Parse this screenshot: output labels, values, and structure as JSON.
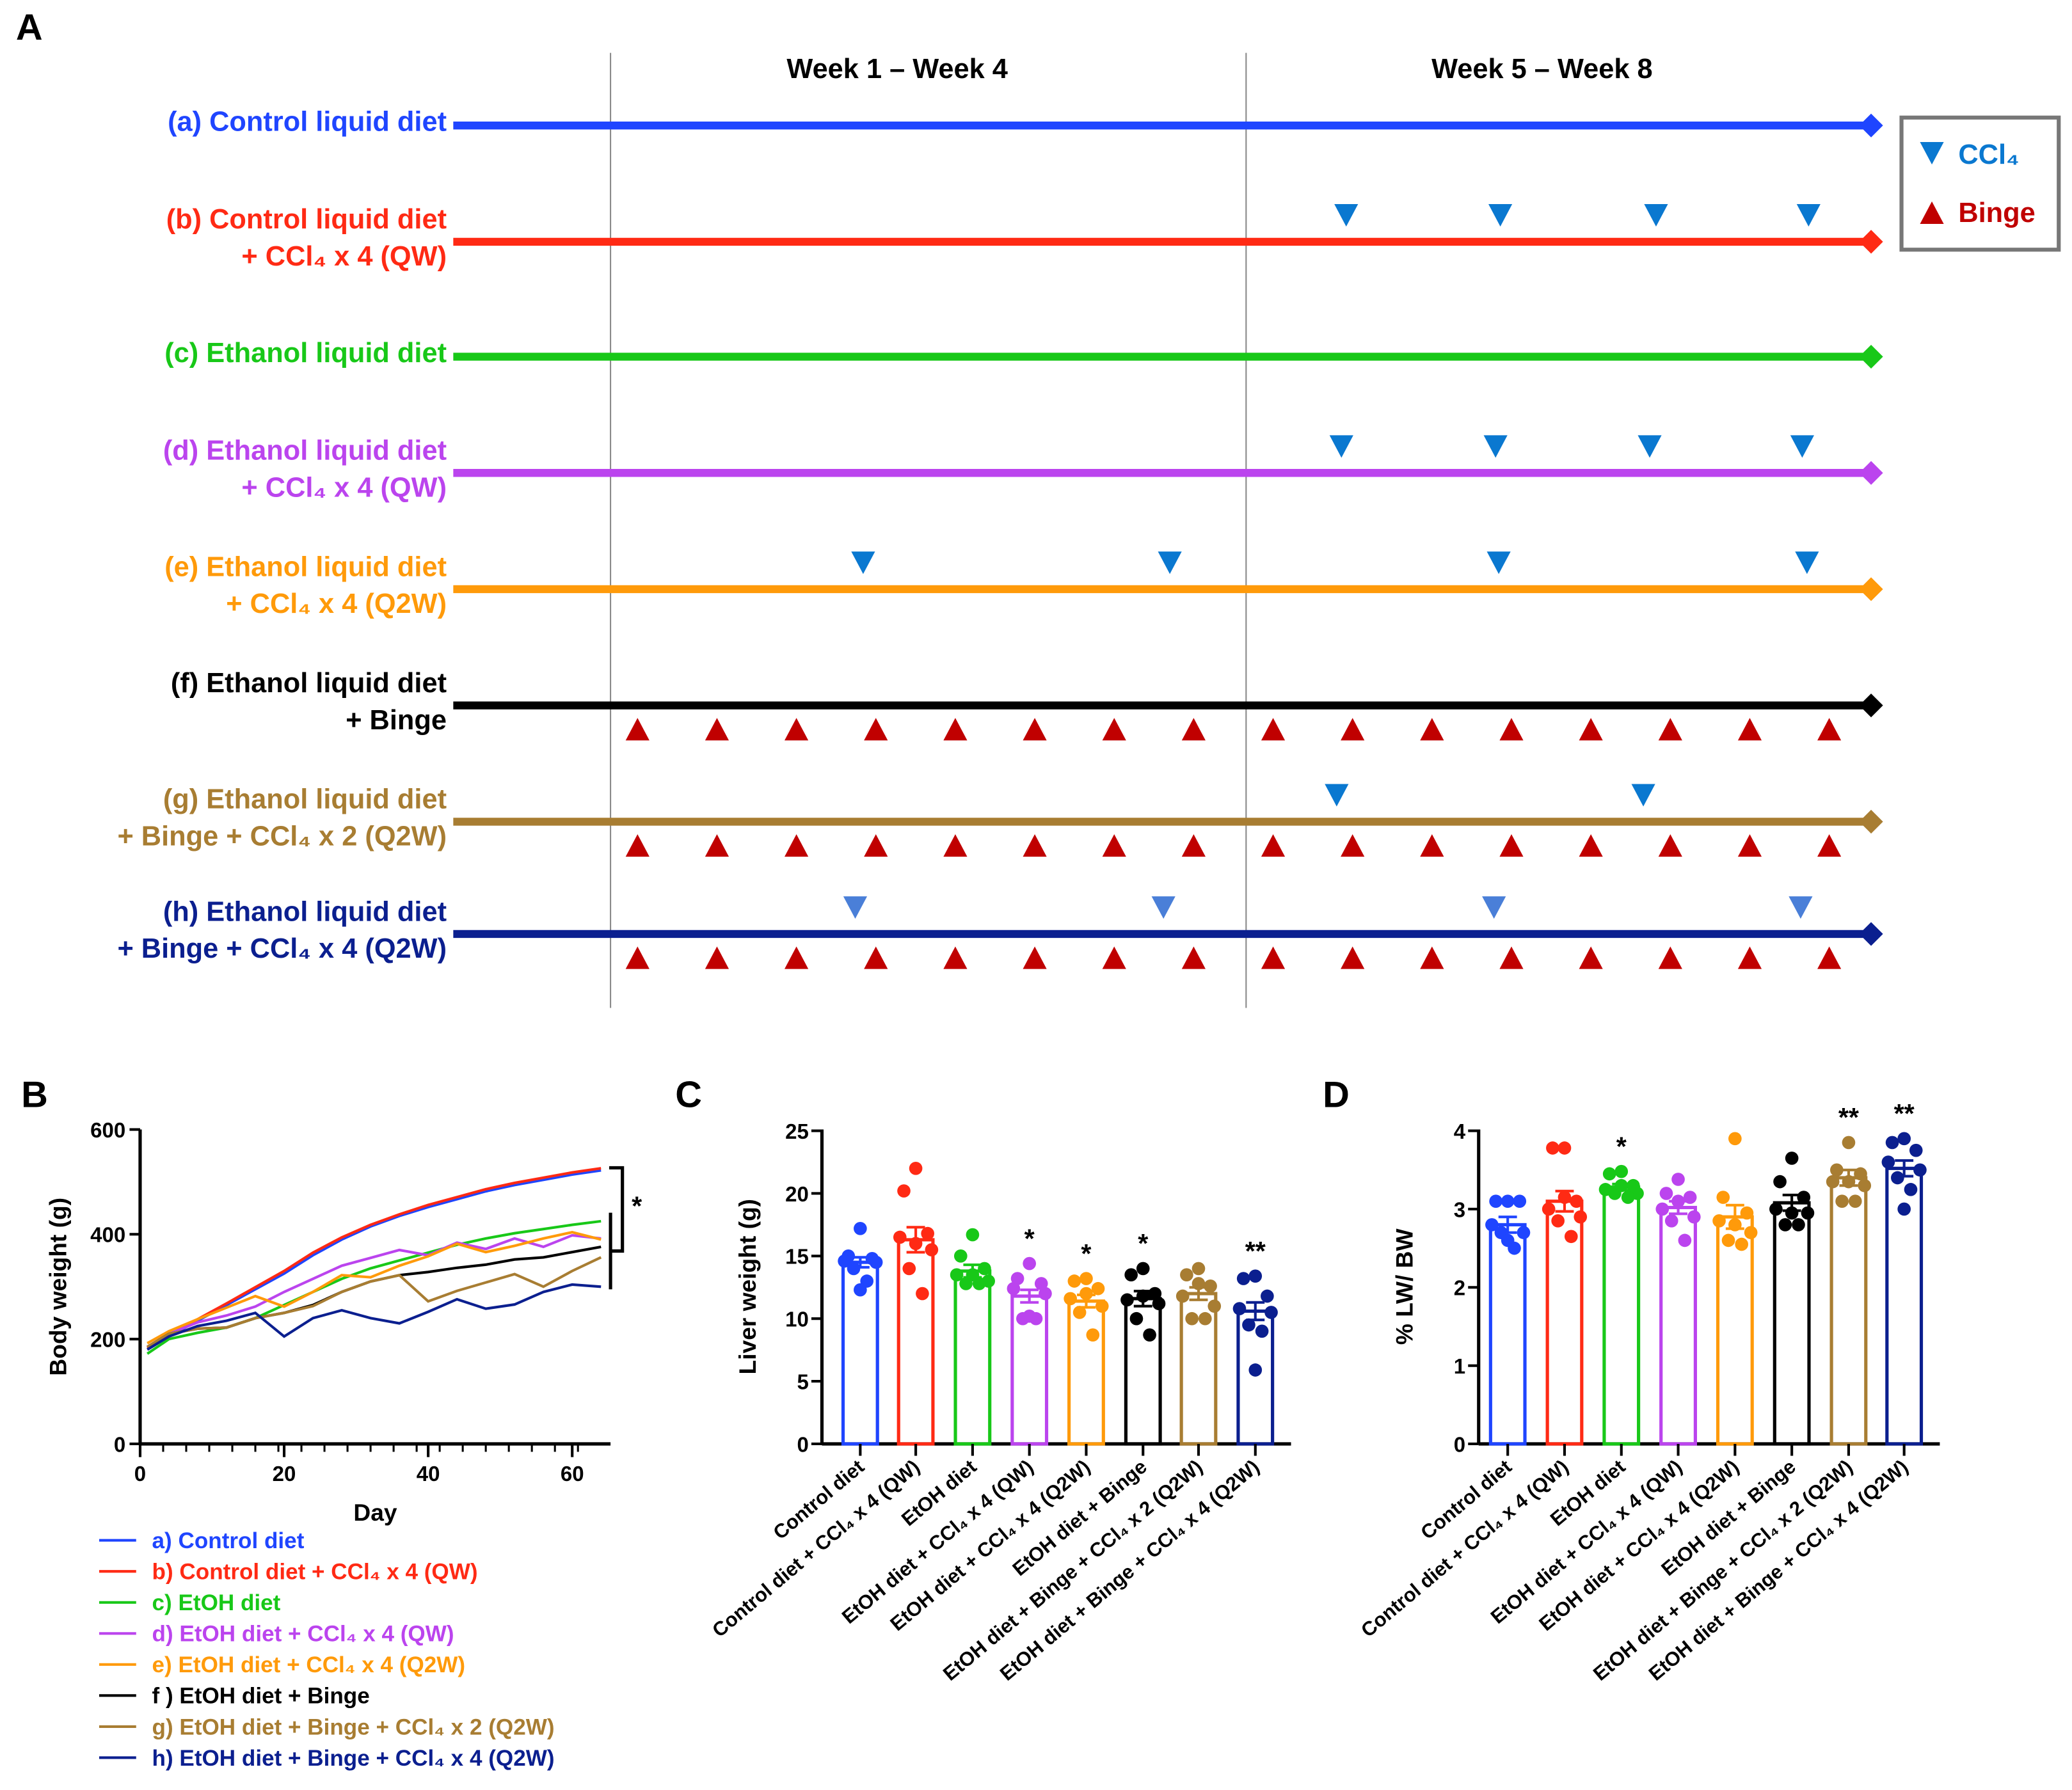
{
  "panel_labels": {
    "a": "A",
    "b": "B",
    "c": "C",
    "d": "D"
  },
  "colors": {
    "a": "#1f45ff",
    "b": "#ff2a14",
    "c": "#18c818",
    "d": "#bb44ee",
    "e": "#ff9a0a",
    "f": "#000000",
    "g": "#a87d32",
    "h": "#0b1f8f",
    "ccl4": "#0a78d0",
    "ccl4_h": "#4a7fd8",
    "binge": "#c00000"
  },
  "timeline": {
    "periods": [
      "Week 1 – Week 4",
      "Week 5 – Week 8"
    ],
    "legend": {
      "ccl4": "CCl₄",
      "binge": "Binge"
    },
    "groups": [
      {
        "key": "a",
        "lines": [
          "(a) Control liquid diet"
        ],
        "ccl4_weeks": [],
        "binge": false
      },
      {
        "key": "b",
        "lines": [
          "(b) Control liquid diet",
          "+ CCl₄ x 4 (QW)"
        ],
        "ccl4_weeks": [
          4.63,
          5.6,
          6.58,
          7.54
        ],
        "binge": false
      },
      {
        "key": "c",
        "lines": [
          "(c) Ethanol liquid diet"
        ],
        "ccl4_weeks": [],
        "binge": false
      },
      {
        "key": "d",
        "lines": [
          "(d) Ethanol liquid diet",
          "+ CCl₄ x 4 (QW)"
        ],
        "ccl4_weeks": [
          4.6,
          5.57,
          6.54,
          7.5
        ],
        "binge": false
      },
      {
        "key": "e",
        "lines": [
          "(e) Ethanol liquid diet",
          "+ CCl₄ x 4 (Q2W)"
        ],
        "ccl4_weeks": [
          1.59,
          3.52,
          5.59,
          7.53
        ],
        "binge": false
      },
      {
        "key": "f",
        "lines": [
          "(f) Ethanol liquid diet",
          "+ Binge"
        ],
        "ccl4_weeks": [],
        "binge": true
      },
      {
        "key": "g",
        "lines": [
          "(g) Ethanol liquid diet",
          "+ Binge + CCl₄ x 2 (Q2W)"
        ],
        "ccl4_weeks": [
          4.57,
          6.5
        ],
        "binge": true
      },
      {
        "key": "h",
        "lines": [
          "(h) Ethanol liquid diet",
          "+ Binge + CCl₄ x 4 (Q2W)"
        ],
        "ccl4_weeks": [
          1.54,
          3.48,
          5.56,
          7.49
        ],
        "binge": true
      }
    ],
    "binge_weeks": [
      0.17,
      0.67,
      1.17,
      1.67,
      2.17,
      2.67,
      3.17,
      3.67,
      4.17,
      4.67,
      5.17,
      5.67,
      6.17,
      6.67,
      7.17,
      7.67
    ]
  },
  "chart_data": [
    {
      "type": "line",
      "panel": "B",
      "xlabel": "Day",
      "ylabel": "Body weight (g)",
      "xlim": [
        0,
        65
      ],
      "ylim": [
        0,
        600
      ],
      "xticks": [
        "0",
        "20",
        "40",
        "60"
      ],
      "yticks": [
        "0",
        "200",
        "400",
        "600"
      ],
      "annotation": "*",
      "x": [
        1,
        4,
        8,
        12,
        16,
        20,
        24,
        28,
        32,
        36,
        40,
        44,
        48,
        52,
        56,
        60,
        64
      ],
      "series": [
        {
          "key": "a",
          "name": "a) Control diet",
          "values": [
            180,
            205,
            235,
            265,
            295,
            325,
            360,
            390,
            415,
            435,
            452,
            467,
            482,
            494,
            504,
            514,
            522
          ]
        },
        {
          "key": "b",
          "name": "b) Control diet + CCl₄ x 4 (QW)",
          "values": [
            183,
            208,
            238,
            268,
            299,
            330,
            365,
            394,
            418,
            438,
            456,
            471,
            486,
            498,
            508,
            518,
            526
          ]
        },
        {
          "key": "c",
          "name": "c) EtOH diet",
          "values": [
            172,
            200,
            212,
            222,
            240,
            265,
            290,
            315,
            335,
            350,
            365,
            380,
            392,
            402,
            410,
            418,
            425
          ]
        },
        {
          "key": "d",
          "name": "d) EtOH diet + CCl₄ x 4 (QW)",
          "values": [
            185,
            210,
            232,
            245,
            262,
            290,
            315,
            340,
            355,
            370,
            360,
            384,
            372,
            392,
            376,
            398,
            392
          ]
        },
        {
          "key": "e",
          "name": "e) EtOH diet + CCl₄ x 4 (Q2W)",
          "values": [
            192,
            215,
            238,
            260,
            282,
            262,
            290,
            322,
            318,
            340,
            358,
            382,
            366,
            378,
            392,
            404,
            390
          ]
        },
        {
          "key": "f",
          "name": "f ) EtOH diet + Binge",
          "values": [
            185,
            210,
            220,
            222,
            240,
            250,
            265,
            290,
            310,
            322,
            328,
            336,
            342,
            352,
            356,
            366,
            376
          ]
        },
        {
          "key": "g",
          "name": "g) EtOH diet + Binge + CCl₄ x 2 (Q2W)",
          "values": [
            185,
            210,
            220,
            222,
            240,
            250,
            263,
            290,
            310,
            322,
            272,
            292,
            308,
            324,
            300,
            330,
            356
          ]
        },
        {
          "key": "h",
          "name": "h) EtOH diet + Binge + CCl₄ x 4 (Q2W)",
          "values": [
            180,
            205,
            225,
            235,
            250,
            205,
            240,
            255,
            240,
            230,
            252,
            276,
            258,
            266,
            290,
            304,
            300
          ]
        }
      ]
    },
    {
      "type": "bar",
      "panel": "C",
      "ylabel": "Liver weight (g)",
      "ylim": [
        0,
        25
      ],
      "yticks": [
        "0",
        "5",
        "10",
        "15",
        "20",
        "25"
      ],
      "categories": [
        "Control diet",
        "Control diet + CCl₄ x 4 (QW)",
        "EtOH diet",
        "EtOH diet + CCl₄ x 4 (QW)",
        "EtOH diet + CCl₄ x 4 (Q2W)",
        "EtOH diet + Binge",
        "EtOH diet + Binge + CCl₄ x 2 (Q2W)",
        "EtOH diet + Binge + CCl₄ x 4 (Q2W)"
      ],
      "keys": [
        "a",
        "b",
        "c",
        "d",
        "e",
        "f",
        "g",
        "h"
      ],
      "means": [
        14.5,
        16.3,
        13.8,
        11.8,
        11.4,
        11.6,
        12.0,
        10.6
      ],
      "sem": [
        0.4,
        1.0,
        0.5,
        0.5,
        0.5,
        0.6,
        0.5,
        0.7
      ],
      "points": [
        [
          17.2,
          15.0,
          14.8,
          14.6,
          14.5,
          14.0,
          13.0,
          12.3
        ],
        [
          22.0,
          20.2,
          16.8,
          16.5,
          15.5,
          14.0,
          12.0,
          16.0
        ],
        [
          16.7,
          15.0,
          14.0,
          13.5,
          13.0,
          12.8,
          12.8,
          13.5
        ],
        [
          14.4,
          13.2,
          12.8,
          12.4,
          12.0,
          10.0,
          10.0,
          10.2
        ],
        [
          13.2,
          13.0,
          12.4,
          11.6,
          11.0,
          10.5,
          8.7,
          12.0
        ],
        [
          14.0,
          13.5,
          12.0,
          11.5,
          11.2,
          10.0,
          8.7,
          11.8
        ],
        [
          14.0,
          13.5,
          12.6,
          11.8,
          11.0,
          10.0,
          10.0,
          12.8
        ],
        [
          13.4,
          13.2,
          11.8,
          10.8,
          10.5,
          9.5,
          9.0,
          5.9
        ]
      ],
      "significance": [
        "",
        "",
        "",
        "*",
        "*",
        "*",
        "",
        "**"
      ]
    },
    {
      "type": "bar",
      "panel": "D",
      "ylabel": "% LW/ BW",
      "ylim": [
        0,
        4
      ],
      "yticks": [
        "0",
        "1",
        "2",
        "3",
        "4"
      ],
      "categories": [
        "Control diet",
        "Control diet + CCl₄ x 4 (QW)",
        "EtOH diet",
        "EtOH diet + CCl₄ x 4 (QW)",
        "EtOH diet + CCl₄ x 4 (Q2W)",
        "EtOH diet + Binge",
        "EtOH diet + Binge + CCl₄ x 2 (Q2W)",
        "EtOH diet + Binge + CCl₄ x 4 (Q2W)"
      ],
      "keys": [
        "a",
        "b",
        "c",
        "d",
        "e",
        "f",
        "g",
        "h"
      ],
      "means": [
        2.8,
        3.1,
        3.28,
        3.02,
        2.9,
        3.08,
        3.4,
        3.52
      ],
      "sem": [
        0.1,
        0.13,
        0.04,
        0.08,
        0.15,
        0.1,
        0.1,
        0.1
      ],
      "points": [
        [
          3.1,
          3.1,
          3.1,
          2.8,
          2.7,
          2.7,
          2.5,
          2.6
        ],
        [
          3.78,
          3.78,
          3.1,
          3.0,
          2.9,
          2.85,
          2.65,
          3.15
        ],
        [
          3.48,
          3.45,
          3.3,
          3.25,
          3.2,
          3.2,
          3.15,
          3.3
        ],
        [
          3.38,
          3.2,
          3.15,
          3.0,
          2.9,
          2.85,
          2.6,
          3.1
        ],
        [
          3.9,
          3.15,
          2.95,
          2.85,
          2.7,
          2.6,
          2.55,
          2.8
        ],
        [
          3.65,
          3.35,
          3.15,
          3.0,
          2.95,
          2.8,
          2.8,
          2.95
        ],
        [
          3.85,
          3.5,
          3.45,
          3.35,
          3.3,
          3.1,
          3.1,
          3.35
        ],
        [
          3.9,
          3.85,
          3.75,
          3.6,
          3.5,
          3.4,
          3.25,
          3.0
        ]
      ],
      "significance": [
        "",
        "",
        "*",
        "",
        "",
        "",
        "**",
        "**"
      ]
    }
  ]
}
